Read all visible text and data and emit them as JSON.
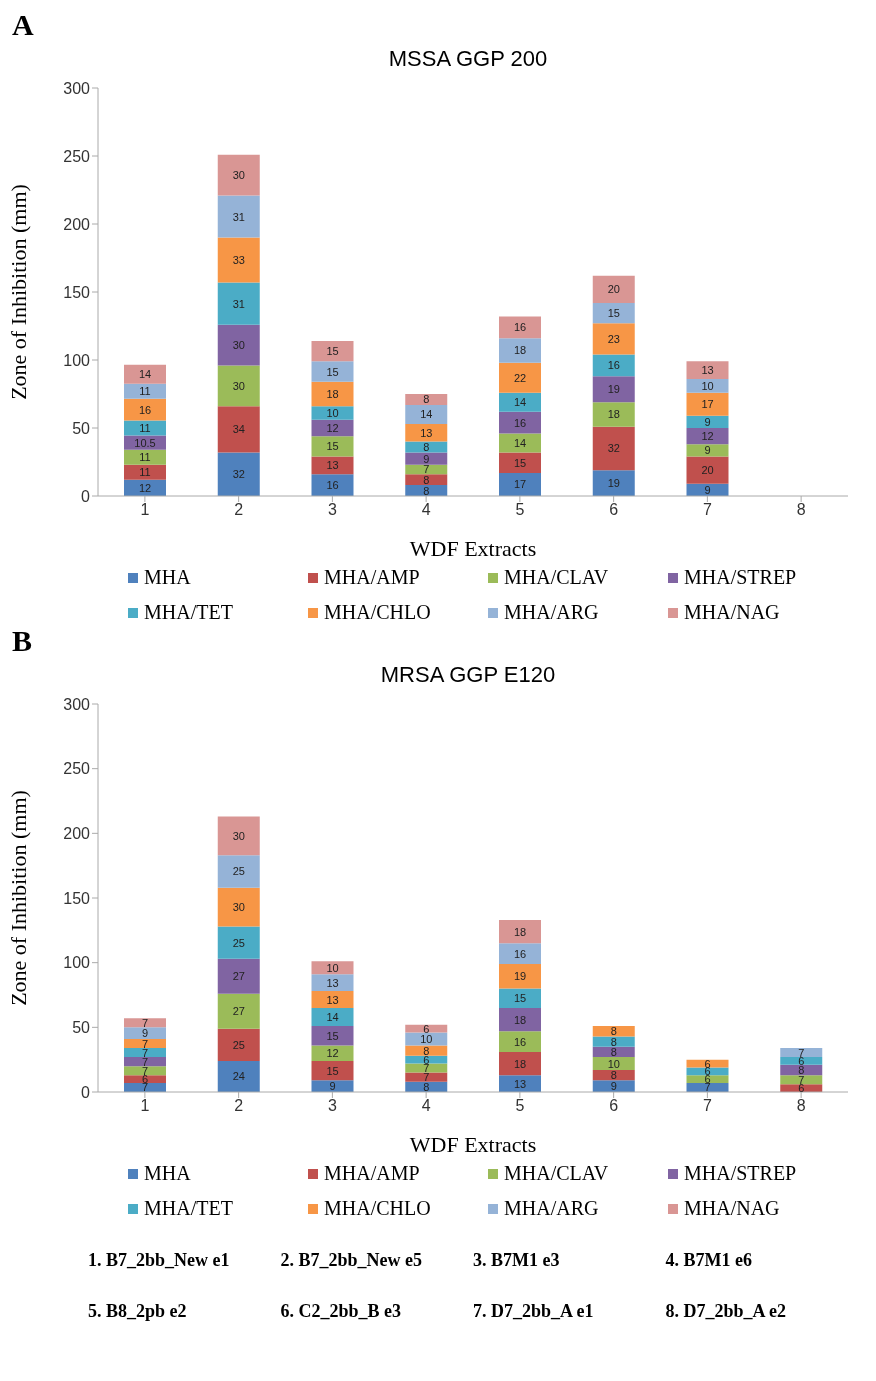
{
  "chart_data": [
    {
      "type": "bar",
      "stacked": true,
      "title": "MSSA GGP 200",
      "xlabel": "WDF Extracts",
      "ylabel": "Zone of Inhibition (mm)",
      "annotations": [
        "A"
      ],
      "categories": [
        "1",
        "2",
        "3",
        "4",
        "5",
        "6",
        "7",
        "8"
      ],
      "ylim": [
        0,
        300
      ],
      "yticks": [
        0,
        50,
        100,
        150,
        200,
        250,
        300
      ],
      "legend": "bottom",
      "series": [
        {
          "name": "MHA",
          "color": "#4f81bd",
          "values": [
            12,
            32,
            16,
            8,
            17,
            19,
            9,
            0
          ],
          "value_labels": [
            "12",
            "32",
            "16",
            "8",
            "17",
            "19",
            "9",
            null
          ]
        },
        {
          "name": "MHA/AMP",
          "color": "#c0504d",
          "values": [
            11,
            34,
            13,
            8,
            15,
            32,
            20,
            0
          ],
          "value_labels": [
            "11",
            "34",
            "13",
            "8",
            "15",
            "32",
            "20",
            null
          ]
        },
        {
          "name": "MHA/CLAV",
          "color": "#9bbb59",
          "values": [
            11,
            30,
            15,
            7,
            14,
            18,
            9,
            0
          ],
          "value_labels": [
            "11",
            "30",
            "15",
            "7",
            "14",
            "18",
            "9",
            null
          ]
        },
        {
          "name": "MHA/STREP",
          "color": "#8064a2",
          "values": [
            10.5,
            30,
            12,
            9,
            16,
            19,
            12,
            0
          ],
          "value_labels": [
            "10.5",
            "30",
            "12",
            "9",
            "16",
            "19",
            "12",
            null
          ]
        },
        {
          "name": "MHA/TET",
          "color": "#4bacc6",
          "values": [
            11,
            31,
            10,
            8,
            14,
            16,
            9,
            0
          ],
          "value_labels": [
            "11",
            "31",
            "10",
            "8",
            "14",
            "16",
            "9",
            null
          ]
        },
        {
          "name": "MHA/CHLO",
          "color": "#f79646",
          "values": [
            16,
            33,
            18,
            13,
            22,
            23,
            17,
            0
          ],
          "value_labels": [
            "16",
            "33",
            "18",
            "13",
            "22",
            "23",
            "17",
            null
          ]
        },
        {
          "name": "MHA/ARG",
          "color": "#95b3d7",
          "values": [
            11,
            31,
            15,
            14,
            18,
            15,
            10,
            0
          ],
          "value_labels": [
            "11",
            "31",
            "15",
            "14",
            "18",
            "15",
            "10",
            null
          ]
        },
        {
          "name": "MHA/NAG",
          "color": "#d99694",
          "values": [
            14,
            30,
            15,
            8,
            16,
            20,
            13,
            0
          ],
          "value_labels": [
            "14",
            "30",
            "15",
            "8",
            "16",
            "20",
            "13",
            null
          ]
        }
      ]
    },
    {
      "type": "bar",
      "stacked": true,
      "title": "MRSA GGP E120",
      "xlabel": "WDF Extracts",
      "ylabel": "Zone of Inhibition (mm)",
      "annotations": [
        "B",
        "1.  B7_2bb_New e1",
        "2.  B7_2bb_New e5",
        "3.  B7M1 e3",
        "4.  B7M1 e6",
        "5.  B8_2pb e2",
        "6. C2_2bb_B e3",
        "7. D7_2bb_A e1",
        "8. D7_2bb_A e2"
      ],
      "categories": [
        "1",
        "2",
        "3",
        "4",
        "5",
        "6",
        "7",
        "8"
      ],
      "ylim": [
        0,
        300
      ],
      "yticks": [
        0,
        50,
        100,
        150,
        200,
        250,
        300
      ],
      "legend": "bottom",
      "series": [
        {
          "name": "MHA",
          "color": "#4f81bd",
          "values": [
            7,
            24,
            9,
            8,
            13,
            9,
            7,
            0
          ],
          "value_labels": [
            "7",
            "24",
            "9",
            "8",
            "13",
            "9",
            "7",
            null
          ]
        },
        {
          "name": "MHA/AMP",
          "color": "#c0504d",
          "values": [
            6,
            25,
            15,
            7,
            18,
            8,
            0,
            6
          ],
          "value_labels": [
            "6",
            "25",
            "15",
            "7",
            "18",
            "8",
            null,
            "6"
          ]
        },
        {
          "name": "MHA/CLAV",
          "color": "#9bbb59",
          "values": [
            7,
            27,
            12,
            7,
            16,
            10,
            6,
            7
          ],
          "value_labels": [
            "7",
            "27",
            "12",
            "7",
            "16",
            "10",
            "6",
            "7"
          ]
        },
        {
          "name": "MHA/STREP",
          "color": "#8064a2",
          "values": [
            7,
            27,
            15,
            0,
            18,
            8,
            0,
            8
          ],
          "value_labels": [
            "7",
            "27",
            "15",
            null,
            "18",
            "8",
            null,
            "8"
          ]
        },
        {
          "name": "MHA/TET",
          "color": "#4bacc6",
          "values": [
            7,
            25,
            14,
            6,
            15,
            8,
            6,
            6
          ],
          "value_labels": [
            "7",
            "25",
            "14",
            "6",
            "15",
            "8",
            "6",
            "6"
          ]
        },
        {
          "name": "MHA/CHLO",
          "color": "#f79646",
          "values": [
            7,
            30,
            13,
            8,
            19,
            8,
            6,
            0
          ],
          "value_labels": [
            "7",
            "30",
            "13",
            "8",
            "19",
            "8",
            "6",
            null
          ]
        },
        {
          "name": "MHA/ARG",
          "color": "#95b3d7",
          "values": [
            9,
            25,
            13,
            10,
            16,
            0,
            0,
            7
          ],
          "value_labels": [
            "9",
            "25",
            "13",
            "10",
            "16",
            null,
            null,
            "7"
          ]
        },
        {
          "name": "MHA/NAG",
          "color": "#d99694",
          "values": [
            7,
            30,
            10,
            6,
            18,
            0,
            0,
            0
          ],
          "value_labels": [
            "7",
            "30",
            "10",
            "6",
            "18",
            null,
            null,
            null
          ]
        }
      ]
    }
  ]
}
